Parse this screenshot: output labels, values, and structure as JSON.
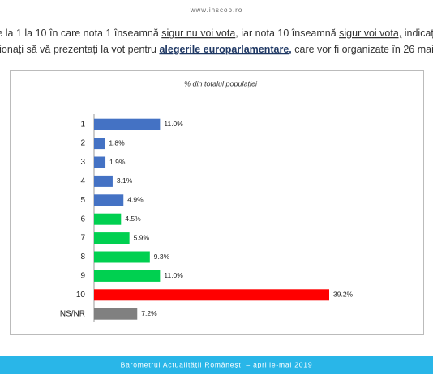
{
  "header": {
    "site": "www.inscop.ro"
  },
  "question": {
    "lines": [
      [
        "e la 1 la 10 în care nota 1 înseamnă ",
        "sigur nu voi vota",
        ", iar nota 10 înseamnă ",
        "sigur voi vota,",
        " indicați"
      ],
      [
        "ionați să vă prezentați la vot pentru ",
        "alegerile europarlamentare,",
        " care vor fi organizate în 26 mai"
      ]
    ]
  },
  "chart_data": {
    "type": "hbar",
    "subtitle": "% din totalul populației",
    "categories": [
      "1",
      "2",
      "3",
      "4",
      "5",
      "6",
      "7",
      "8",
      "9",
      "10",
      "NS/NR"
    ],
    "values": [
      11.0,
      1.8,
      1.9,
      3.1,
      4.9,
      4.5,
      5.9,
      9.3,
      11.0,
      39.2,
      7.2
    ],
    "value_labels": [
      "11.0%",
      "1.8%",
      "1.9%",
      "3.1%",
      "4.9%",
      "4.5%",
      "5.9%",
      "9.3%",
      "11.0%",
      "39.2%",
      "7.2%"
    ],
    "colors": [
      "#4472c4",
      "#4472c4",
      "#4472c4",
      "#4472c4",
      "#4472c4",
      "#00d050",
      "#00d050",
      "#00d050",
      "#00d050",
      "#ff0000",
      "#808080"
    ]
  },
  "footer": {
    "text": "Barometrul Actualității Românești – aprilie-mai 2019"
  }
}
